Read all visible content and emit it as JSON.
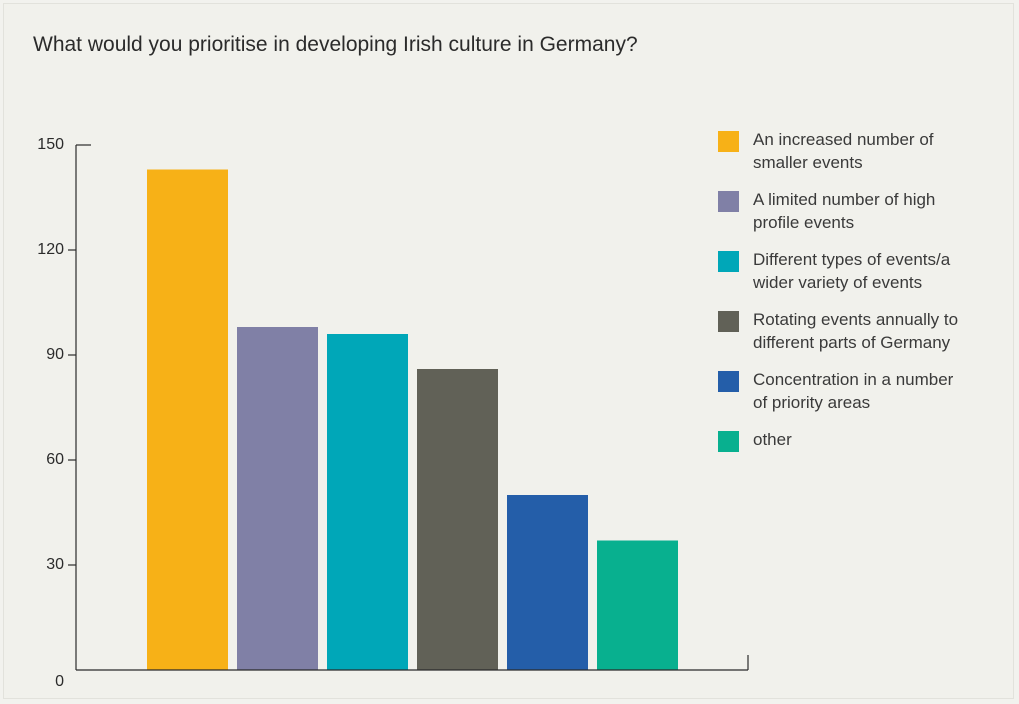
{
  "chart_data": {
    "type": "bar",
    "title": "What would you prioritise in developing Irish culture in Germany?",
    "xlabel": "",
    "ylabel": "",
    "ylim": [
      0,
      150
    ],
    "yticks": [
      0,
      30,
      60,
      90,
      120,
      150
    ],
    "grid": false,
    "legend_position": "right",
    "categories": [
      "An increased number of smaller events",
      "A limited number of high profile events",
      "Different types of events/a wider variety of events",
      "Rotating events annually to different parts of Germany",
      "Concentration in a number of priority areas",
      "other"
    ],
    "values": [
      143,
      98,
      96,
      86,
      50,
      37
    ],
    "colors": [
      "#f7b117",
      "#8080a6",
      "#00a7b8",
      "#616157",
      "#245ea9",
      "#08b08f"
    ]
  },
  "legend": [
    {
      "line1": "An increased number of",
      "line2": "smaller events"
    },
    {
      "line1": "A limited number of high",
      "line2": "profile events"
    },
    {
      "line1": "Different types of events/a",
      "line2": "wider variety of events"
    },
    {
      "line1": "Rotating events annually to",
      "line2": "different parts of Germany"
    },
    {
      "line1": "Concentration in a number",
      "line2": "of priority areas"
    },
    {
      "line1": "other",
      "line2": ""
    }
  ]
}
